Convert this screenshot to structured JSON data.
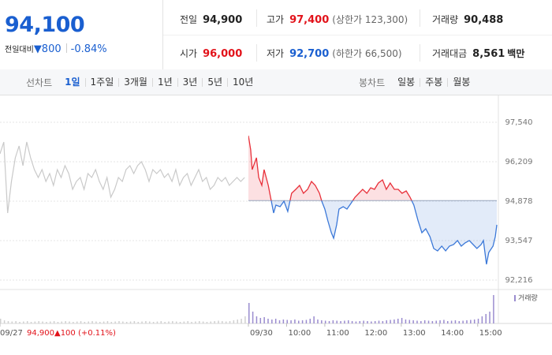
{
  "header": {
    "price": "94,100",
    "change_label": "전일대비",
    "change": "▼800",
    "change_rate": "-0.84%",
    "stats": [
      {
        "label": "전일",
        "value": "94,900",
        "color": "#222222"
      },
      {
        "label": "고가",
        "value": "97,400",
        "note": "(상한가 123,300)",
        "color": "#e2121a"
      },
      {
        "label": "거래량",
        "value": "90,488",
        "color": "#222222"
      },
      {
        "label": "시가",
        "value": "96,000",
        "color": "#e2121a"
      },
      {
        "label": "저가",
        "value": "92,700",
        "note": "(하한가 66,500)",
        "color": "#1a5fd0"
      },
      {
        "label": "거래대금",
        "value": "8,561",
        "unit": "백만",
        "color": "#222222"
      }
    ]
  },
  "toolbar": {
    "line_chart": {
      "label": "선차트",
      "periods": [
        "1일",
        "1주일",
        "3개월",
        "1년",
        "3년",
        "5년",
        "10년"
      ],
      "active": 0
    },
    "candle_chart": {
      "label": "봉차트",
      "periods": [
        "일봉",
        "주봉",
        "월봉"
      ]
    }
  },
  "chart_data": {
    "type": "line",
    "xlim": [
      -6.5,
      6.5
    ],
    "ylim": [
      91950,
      98420
    ],
    "yticks": [
      {
        "value": 97540,
        "label": "97,540"
      },
      {
        "value": 96209,
        "label": "96,209"
      },
      {
        "value": 94878,
        "label": "94,878"
      },
      {
        "value": 93547,
        "label": "93,547"
      },
      {
        "value": 92216,
        "label": "92,216"
      }
    ],
    "xticks": [
      {
        "value": -6.5,
        "label": "09/27"
      },
      {
        "value": 0,
        "label": "09/30"
      },
      {
        "value": 1,
        "label": "10:00"
      },
      {
        "value": 2,
        "label": "11:00"
      },
      {
        "value": 3,
        "label": "12:00"
      },
      {
        "value": 4,
        "label": "13:00"
      },
      {
        "value": 5,
        "label": "14:00"
      },
      {
        "value": 6,
        "label": "15:00"
      }
    ],
    "grid": true,
    "baseline": 94900,
    "up_color": "#e8303a",
    "down_color": "#3b78d8",
    "previous_color": "#c9c9c9",
    "previous": {
      "x": [
        -6.5,
        -6.4,
        -6.3,
        -6.2,
        -6.1,
        -6.0,
        -5.9,
        -5.8,
        -5.7,
        -5.6,
        -5.5,
        -5.4,
        -5.3,
        -5.2,
        -5.1,
        -5.0,
        -4.9,
        -4.8,
        -4.7,
        -4.6,
        -4.5,
        -4.4,
        -4.3,
        -4.2,
        -4.1,
        -4.0,
        -3.9,
        -3.8,
        -3.7,
        -3.6,
        -3.5,
        -3.4,
        -3.3,
        -3.2,
        -3.1,
        -3.0,
        -2.9,
        -2.8,
        -2.7,
        -2.6,
        -2.5,
        -2.4,
        -2.3,
        -2.2,
        -2.1,
        -2.0,
        -1.9,
        -1.8,
        -1.7,
        -1.6,
        -1.5,
        -1.4,
        -1.3,
        -1.2,
        -1.1,
        -1.0,
        -0.9,
        -0.8,
        -0.7,
        -0.6,
        -0.5,
        -0.4,
        -0.3,
        -0.2,
        -0.1
      ],
      "values": [
        96477,
        96876,
        94480,
        95545,
        96344,
        96743,
        96077,
        96876,
        96344,
        95944,
        95678,
        95944,
        95545,
        95811,
        95412,
        95944,
        95678,
        96077,
        95811,
        95279,
        95545,
        95678,
        95279,
        95811,
        95678,
        95944,
        95545,
        95279,
        95678,
        95013,
        95279,
        95678,
        95545,
        95944,
        96077,
        95811,
        96077,
        96211,
        95944,
        95545,
        95944,
        95811,
        95944,
        95678,
        95811,
        95545,
        95944,
        95412,
        95678,
        95811,
        95412,
        95678,
        95944,
        95545,
        95678,
        95279,
        95412,
        95678,
        95545,
        95678,
        95412,
        95545,
        95678,
        95545,
        95678
      ]
    },
    "today": {
      "x": [
        0,
        0.06,
        0.1,
        0.21,
        0.27,
        0.35,
        0.41,
        0.52,
        0.58,
        0.66,
        0.72,
        0.83,
        0.93,
        1.03,
        1.13,
        1.24,
        1.34,
        1.44,
        1.55,
        1.65,
        1.75,
        1.86,
        1.92,
        2.0,
        2.08,
        2.17,
        2.23,
        2.31,
        2.37,
        2.48,
        2.58,
        2.68,
        2.79,
        2.89,
        2.99,
        3.1,
        3.2,
        3.3,
        3.4,
        3.51,
        3.61,
        3.71,
        3.82,
        3.92,
        4.02,
        4.13,
        4.23,
        4.33,
        4.44,
        4.54,
        4.64,
        4.75,
        4.85,
        4.95,
        5.06,
        5.16,
        5.26,
        5.37,
        5.47,
        5.57,
        5.67,
        5.78,
        5.88,
        5.98,
        6.09,
        6.15,
        6.23,
        6.29,
        6.4,
        6.46,
        6.5
      ],
      "values": [
        97089,
        96610,
        95944,
        96344,
        95678,
        95412,
        95944,
        95412,
        95013,
        94480,
        94746,
        94693,
        94880,
        94533,
        95146,
        95279,
        95412,
        95146,
        95279,
        95545,
        95412,
        95146,
        94880,
        94613,
        94214,
        93815,
        93628,
        94081,
        94613,
        94693,
        94613,
        94800,
        95013,
        95146,
        95279,
        95146,
        95332,
        95279,
        95492,
        95598,
        95279,
        95492,
        95279,
        95279,
        95146,
        95226,
        95013,
        94746,
        94214,
        93815,
        93948,
        93682,
        93282,
        93202,
        93362,
        93202,
        93362,
        93415,
        93549,
        93362,
        93469,
        93549,
        93415,
        93282,
        93415,
        93549,
        92750,
        93149,
        93362,
        93682,
        94081
      ]
    },
    "volume": {
      "label": "거래량",
      "vlim": [
        0,
        4000
      ],
      "color": "#9a8ccf",
      "previous_color": "#d0d0d0",
      "previous_x": [
        -6.5,
        -6.4,
        -6.3,
        -6.2,
        -6.1,
        -6.0,
        -5.9,
        -5.8,
        -5.7,
        -5.6,
        -5.5,
        -5.4,
        -5.3,
        -5.2,
        -5.1,
        -5.0,
        -4.9,
        -4.8,
        -4.7,
        -4.6,
        -4.5,
        -4.4,
        -4.3,
        -4.2,
        -4.1,
        -4.0,
        -3.9,
        -3.8,
        -3.7,
        -3.6,
        -3.5,
        -3.4,
        -3.3,
        -3.2,
        -3.1,
        -3.0,
        -2.9,
        -2.8,
        -2.7,
        -2.6,
        -2.5,
        -2.4,
        -2.3,
        -2.2,
        -2.1,
        -2.0,
        -1.9,
        -1.8,
        -1.7,
        -1.6,
        -1.5,
        -1.4,
        -1.3,
        -1.2,
        -1.1,
        -1.0,
        -0.9,
        -0.8,
        -0.7,
        -0.6,
        -0.5,
        -0.4,
        -0.3,
        -0.2,
        -0.1
      ],
      "previous_values": [
        600,
        400,
        300,
        250,
        300,
        200,
        250,
        300,
        200,
        250,
        300,
        250,
        200,
        250,
        300,
        200,
        250,
        300,
        250,
        200,
        250,
        300,
        200,
        250,
        300,
        250,
        200,
        250,
        300,
        200,
        250,
        300,
        250,
        200,
        250,
        300,
        200,
        250,
        300,
        250,
        200,
        250,
        300,
        200,
        250,
        300,
        250,
        200,
        250,
        300,
        200,
        250,
        300,
        250,
        200,
        250,
        300,
        350,
        300,
        250,
        300,
        400,
        500,
        600,
        900
      ],
      "x": [
        0,
        0.1,
        0.2,
        0.3,
        0.4,
        0.5,
        0.6,
        0.7,
        0.8,
        0.9,
        1.0,
        1.1,
        1.2,
        1.3,
        1.4,
        1.5,
        1.6,
        1.7,
        1.8,
        1.9,
        2.0,
        2.1,
        2.2,
        2.3,
        2.4,
        2.5,
        2.6,
        2.7,
        2.8,
        2.9,
        3.0,
        3.1,
        3.2,
        3.3,
        3.4,
        3.5,
        3.6,
        3.7,
        3.8,
        3.9,
        4.0,
        4.1,
        4.2,
        4.3,
        4.4,
        4.5,
        4.6,
        4.7,
        4.8,
        4.9,
        5.0,
        5.1,
        5.2,
        5.3,
        5.4,
        5.5,
        5.6,
        5.7,
        5.8,
        5.9,
        6.0,
        6.1,
        6.2,
        6.3,
        6.4
      ],
      "values": [
        2600,
        1500,
        900,
        700,
        800,
        600,
        500,
        600,
        400,
        500,
        450,
        400,
        500,
        350,
        400,
        450,
        600,
        900,
        500,
        400,
        350,
        300,
        400,
        350,
        300,
        350,
        400,
        300,
        250,
        300,
        350,
        300,
        250,
        300,
        350,
        300,
        400,
        450,
        500,
        600,
        700,
        500,
        450,
        400,
        350,
        300,
        400,
        350,
        300,
        350,
        400,
        450,
        300,
        350,
        400,
        300,
        350,
        400,
        450,
        500,
        600,
        900,
        1200,
        1500,
        3600
      ]
    },
    "previous_info": {
      "close": "94,900",
      "change": "▲100 (+0.11%)"
    }
  }
}
